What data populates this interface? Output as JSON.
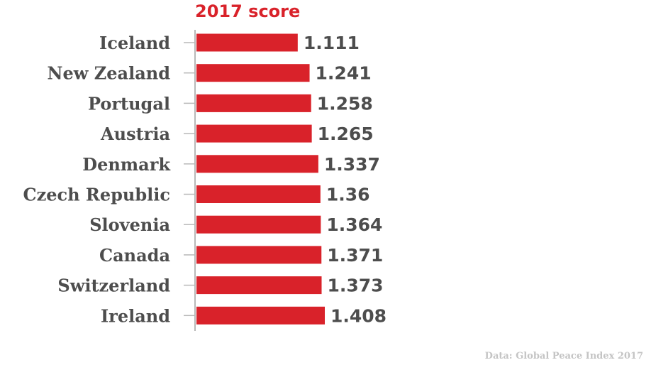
{
  "chart_data": {
    "type": "bar",
    "orientation": "horizontal",
    "title": "2017 score",
    "source": "Data: Global Peace Index 2017",
    "categories": [
      "Iceland",
      "New Zealand",
      "Portugal",
      "Austria",
      "Denmark",
      "Czech Republic",
      "Slovenia",
      "Canada",
      "Switzerland",
      "Ireland"
    ],
    "values": [
      1.111,
      1.241,
      1.258,
      1.265,
      1.337,
      1.36,
      1.364,
      1.371,
      1.373,
      1.408
    ],
    "value_labels": [
      "1.111",
      "1.241",
      "1.258",
      "1.265",
      "1.337",
      "1.36",
      "1.364",
      "1.371",
      "1.373",
      "1.408"
    ],
    "xlim": [
      0,
      1.408
    ],
    "colors": {
      "bar": "#d9222a",
      "title": "#d9222a",
      "text": "#4d4d4d",
      "axis": "#b8b8b8",
      "source": "#c4c4c4"
    },
    "grid": false,
    "legend": "none"
  }
}
